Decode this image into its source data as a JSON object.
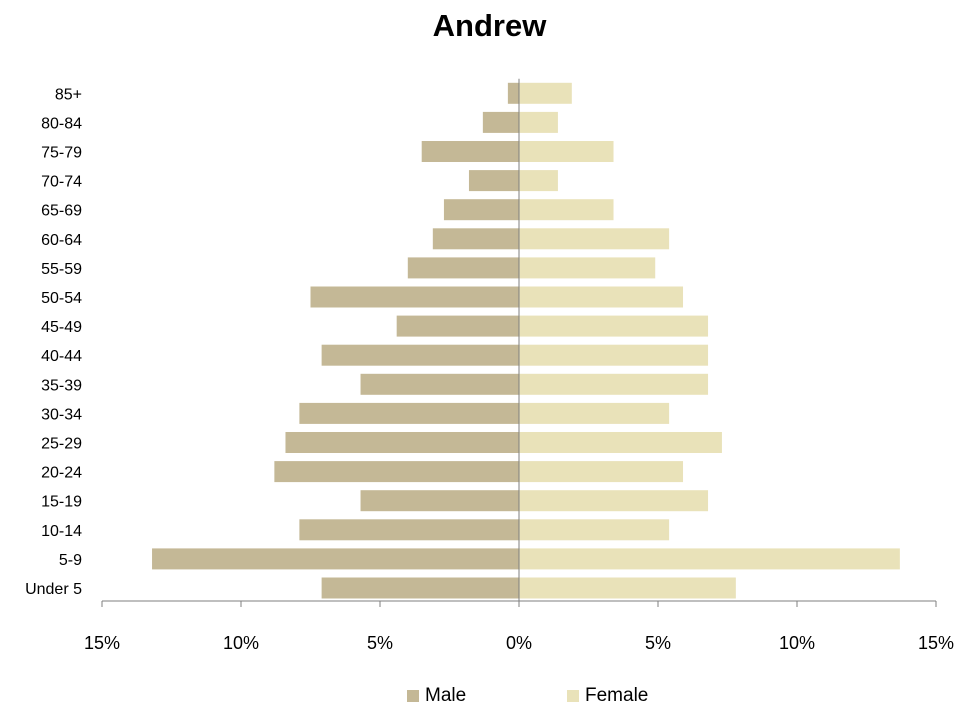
{
  "chart_data": {
    "type": "bar",
    "orientation": "horizontal",
    "title": "Andrew",
    "categories": [
      "Under 5",
      "5-9",
      "10-14",
      "15-19",
      "20-24",
      "25-29",
      "30-34",
      "35-39",
      "40-44",
      "45-49",
      "50-54",
      "55-59",
      "60-64",
      "65-69",
      "70-74",
      "75-79",
      "80-84",
      "85+"
    ],
    "series": [
      {
        "name": "Male",
        "color": "#c4b896",
        "values": [
          -7.1,
          -13.2,
          -7.9,
          -5.7,
          -8.8,
          -8.4,
          -7.9,
          -5.7,
          -7.1,
          -4.4,
          -7.5,
          -4.0,
          -3.1,
          -2.7,
          -1.8,
          -3.5,
          -1.3,
          -0.4
        ]
      },
      {
        "name": "Female",
        "color": "#e9e2b9",
        "values": [
          7.8,
          13.7,
          5.4,
          6.8,
          5.9,
          7.3,
          5.4,
          6.8,
          6.8,
          6.8,
          5.9,
          4.9,
          5.4,
          3.4,
          1.4,
          3.4,
          1.4,
          1.9
        ]
      }
    ],
    "xlim": [
      -15,
      15
    ],
    "xticks": [
      -15,
      -10,
      -5,
      0,
      5,
      10,
      15
    ],
    "xtick_labels": [
      "15%",
      "10%",
      "5%",
      "0%",
      "5%",
      "10%",
      "15%"
    ],
    "grid": false,
    "legend_position": "bottom"
  }
}
